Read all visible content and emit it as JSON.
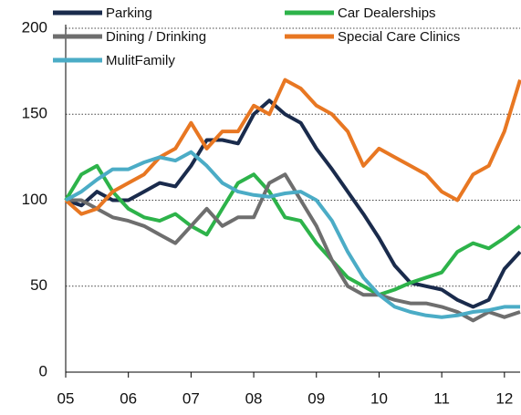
{
  "chart_data": {
    "type": "line",
    "x": [
      2005,
      2005.25,
      2005.5,
      2005.75,
      2006,
      2006.25,
      2006.5,
      2006.75,
      2007,
      2007.25,
      2007.5,
      2007.75,
      2008,
      2008.25,
      2008.5,
      2008.75,
      2009,
      2009.25,
      2009.5,
      2009.75,
      2010,
      2010.25,
      2010.5,
      2010.75,
      2011,
      2011.25,
      2011.5,
      2011.75,
      2012,
      2012.25
    ],
    "series": [
      {
        "name": "Parking",
        "color": "#1a2b4c",
        "values": [
          100,
          97,
          105,
          100,
          100,
          105,
          110,
          108,
          120,
          135,
          135,
          133,
          150,
          158,
          150,
          145,
          130,
          118,
          105,
          92,
          78,
          62,
          52,
          50,
          48,
          42,
          38,
          42,
          60,
          70
        ]
      },
      {
        "name": "Car Dealerships",
        "color": "#2db34a",
        "values": [
          100,
          115,
          120,
          105,
          95,
          90,
          88,
          92,
          85,
          80,
          95,
          110,
          115,
          105,
          90,
          88,
          75,
          65,
          55,
          50,
          45,
          48,
          52,
          55,
          58,
          70,
          75,
          72,
          78,
          85
        ]
      },
      {
        "name": "Dining / Drinking",
        "color": "#6e6e6e",
        "values": [
          100,
          100,
          95,
          90,
          88,
          85,
          80,
          75,
          85,
          95,
          85,
          90,
          90,
          110,
          115,
          100,
          85,
          65,
          50,
          45,
          45,
          42,
          40,
          40,
          38,
          35,
          30,
          35,
          32,
          35
        ]
      },
      {
        "name": "Special Care Clinics",
        "color": "#e87722",
        "values": [
          100,
          92,
          95,
          105,
          110,
          115,
          125,
          130,
          145,
          130,
          140,
          140,
          155,
          150,
          170,
          165,
          155,
          150,
          140,
          120,
          130,
          125,
          120,
          115,
          105,
          100,
          115,
          120,
          140,
          170
        ]
      },
      {
        "name": "MulitFamily",
        "color": "#4bacc6",
        "values": [
          100,
          105,
          112,
          118,
          118,
          122,
          125,
          123,
          128,
          120,
          110,
          105,
          103,
          102,
          104,
          105,
          100,
          88,
          70,
          55,
          45,
          38,
          35,
          33,
          32,
          33,
          35,
          36,
          38,
          38
        ]
      }
    ],
    "xlim": [
      2005,
      2012.25
    ],
    "xticks": [
      {
        "value": 2005,
        "label": "05"
      },
      {
        "value": 2006,
        "label": "06"
      },
      {
        "value": 2007,
        "label": "07"
      },
      {
        "value": 2008,
        "label": "08"
      },
      {
        "value": 2009,
        "label": "09"
      },
      {
        "value": 2010,
        "label": "10"
      },
      {
        "value": 2011,
        "label": "11"
      },
      {
        "value": 2012,
        "label": "12"
      }
    ],
    "ylim": [
      0,
      200
    ],
    "yticks": [
      0,
      50,
      100,
      150,
      200
    ],
    "grid": true
  }
}
